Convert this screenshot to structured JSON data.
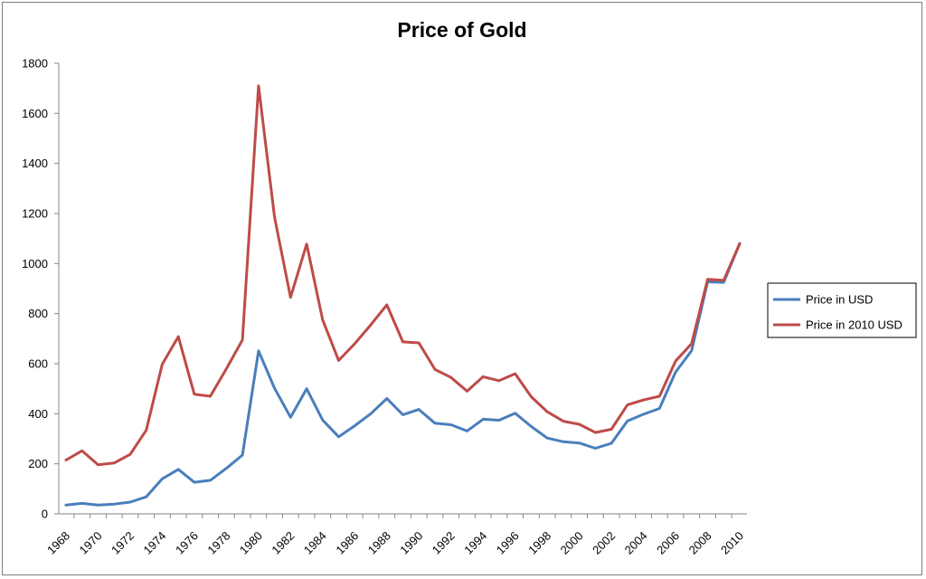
{
  "chart_data": {
    "type": "line",
    "title": "Price of Gold",
    "xlabel": "",
    "ylabel": "",
    "ylim": [
      0,
      1800
    ],
    "yticks": [
      "0",
      "200",
      "400",
      "600",
      "800",
      "1000",
      "1200",
      "1400",
      "1600",
      "1800"
    ],
    "xlim": [
      1968,
      2010
    ],
    "xticks": [
      "1968",
      "1970",
      "1972",
      "1974",
      "1976",
      "1978",
      "1980",
      "1982",
      "1984",
      "1986",
      "1988",
      "1990",
      "1992",
      "1994",
      "1996",
      "1998",
      "2000",
      "2002",
      "2004",
      "2006",
      "2008",
      "2010"
    ],
    "grid": false,
    "legend_position": "right",
    "x": [
      1968,
      1969,
      1970,
      1971,
      1972,
      1973,
      1974,
      1975,
      1976,
      1977,
      1978,
      1979,
      1980,
      1981,
      1982,
      1983,
      1984,
      1985,
      1986,
      1987,
      1988,
      1989,
      1990,
      1991,
      1992,
      1993,
      1994,
      1995,
      1996,
      1997,
      1998,
      1999,
      2000,
      2001,
      2002,
      2003,
      2004,
      2005,
      2006,
      2007,
      2008,
      2009,
      2010
    ],
    "series": [
      {
        "name": "Price in USD",
        "color": "#4a7ebb",
        "values": [
          35,
          42,
          35,
          39,
          47,
          68,
          140,
          178,
          126,
          134,
          182,
          235,
          651,
          502,
          386,
          500,
          375,
          308,
          352,
          400,
          461,
          396,
          417,
          362,
          356,
          331,
          378,
          374,
          402,
          349,
          303,
          288,
          283,
          262,
          282,
          371,
          398,
          421,
          566,
          652,
          927,
          925,
          1080
        ]
      },
      {
        "name": "Price in 2010 USD",
        "color": "#be4b48",
        "values": [
          215,
          252,
          196,
          203,
          238,
          334,
          598,
          708,
          478,
          470,
          580,
          695,
          1710,
          1185,
          865,
          1078,
          775,
          613,
          680,
          755,
          835,
          687,
          683,
          577,
          545,
          490,
          548,
          532,
          560,
          468,
          408,
          370,
          358,
          325,
          338,
          435,
          455,
          470,
          610,
          680,
          937,
          933,
          1080
        ]
      }
    ]
  }
}
